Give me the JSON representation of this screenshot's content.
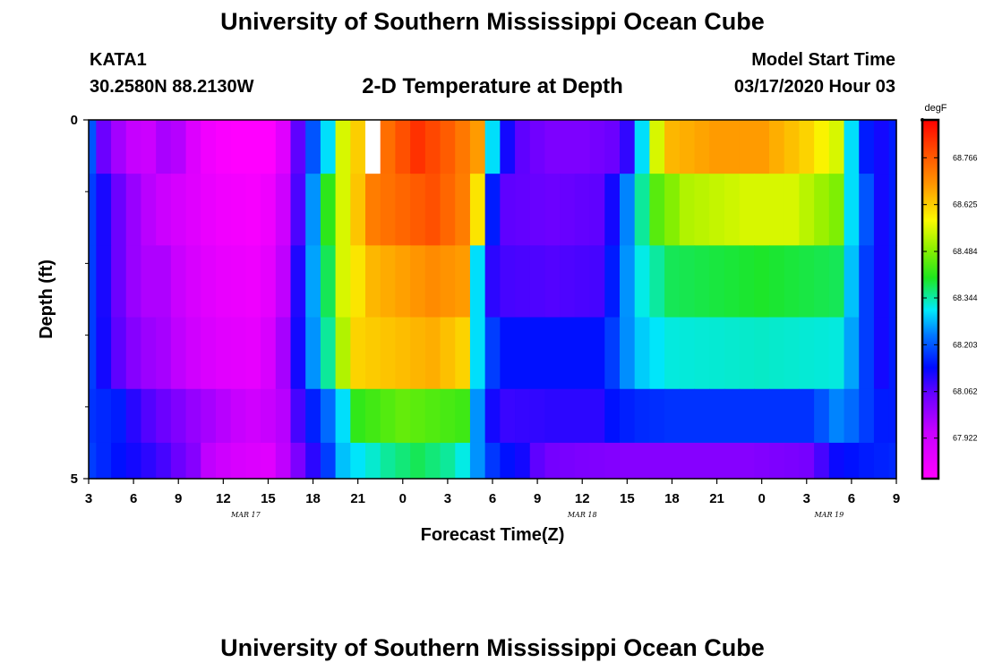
{
  "header": {
    "title": "University of Southern Mississippi Ocean Cube",
    "station": "KATA1",
    "coords": "30.2580N 88.2130W",
    "subtitle": "2-D Temperature at Depth",
    "model_start_label": "Model Start Time",
    "model_start_value": "03/17/2020 Hour 03"
  },
  "footer": {
    "title": "University of Southern Mississippi Ocean Cube"
  },
  "chart_data": {
    "type": "heatmap",
    "title": "2-D Temperature at Depth",
    "xlabel": "Forecast Time(Z)",
    "ylabel": "Depth (ft)",
    "x_hours": [
      0,
      54
    ],
    "y_range": [
      0,
      5
    ],
    "y_tick_labels": [
      {
        "label": "0",
        "value": 0
      },
      {
        "label": "5",
        "value": 5
      }
    ],
    "y_minor_ticks": [
      1,
      2,
      3,
      4
    ],
    "x_tick_labels": [
      "3",
      "6",
      "9",
      "12",
      "15",
      "18",
      "21",
      "0",
      "3",
      "6",
      "9",
      "12",
      "15",
      "18",
      "21",
      "0",
      "3",
      "6",
      "9"
    ],
    "date_labels": [
      {
        "label": "MAR 17",
        "hour": 10.5
      },
      {
        "label": "MAR 18",
        "hour": 33
      },
      {
        "label": "MAR 19",
        "hour": 49.5
      }
    ],
    "colorbar": {
      "unit": "degF",
      "min": 67.8,
      "max": 68.88,
      "tick_labels": [
        "67.922",
        "68.062",
        "68.203",
        "68.344",
        "68.484",
        "68.625",
        "68.766"
      ],
      "tick_values": [
        67.922,
        68.062,
        68.203,
        68.344,
        68.484,
        68.625,
        68.766
      ]
    },
    "depth_layers": [
      0.25,
      1.25,
      2.25,
      3.25,
      4.25,
      4.75
    ],
    "profiles": [
      {
        "depth": 0.25,
        "keypoints": [
          [
            0,
            68.2
          ],
          [
            1,
            68.05
          ],
          [
            2.5,
            67.95
          ],
          [
            4,
            67.93
          ],
          [
            5.5,
            68.0
          ],
          [
            7.5,
            67.85
          ],
          [
            8.5,
            67.82
          ],
          [
            10,
            67.8
          ],
          [
            11,
            67.8
          ],
          [
            12,
            67.8
          ],
          [
            13,
            67.88
          ],
          [
            14.5,
            68.15
          ],
          [
            16,
            68.3
          ],
          [
            17,
            68.55
          ],
          [
            19,
            68.7
          ],
          [
            22,
            68.82
          ],
          [
            24.5,
            68.75
          ],
          [
            26,
            68.68
          ],
          [
            26.5,
            68.55
          ],
          [
            27,
            68.3
          ],
          [
            28,
            68.12
          ],
          [
            29,
            68.06
          ],
          [
            31,
            68.03
          ],
          [
            33,
            68.03
          ],
          [
            35,
            68.05
          ],
          [
            36.5,
            68.12
          ],
          [
            37,
            68.3
          ],
          [
            38,
            68.55
          ],
          [
            39,
            68.65
          ],
          [
            42,
            68.68
          ],
          [
            45,
            68.68
          ],
          [
            48,
            68.62
          ],
          [
            50,
            68.55
          ],
          [
            51,
            68.3
          ],
          [
            52,
            68.15
          ],
          [
            53,
            68.12
          ],
          [
            54,
            68.15
          ]
        ]
      },
      {
        "depth": 1.25,
        "keypoints": [
          [
            0,
            68.18
          ],
          [
            2,
            68.05
          ],
          [
            3.5,
            67.97
          ],
          [
            5,
            67.93
          ],
          [
            7,
            67.88
          ],
          [
            8.5,
            67.84
          ],
          [
            11,
            67.82
          ],
          [
            12.5,
            67.85
          ],
          [
            13.5,
            68.0
          ],
          [
            14.5,
            68.15
          ],
          [
            15.5,
            68.35
          ],
          [
            17,
            68.55
          ],
          [
            19,
            68.72
          ],
          [
            23,
            68.78
          ],
          [
            25,
            68.72
          ],
          [
            26,
            68.6
          ],
          [
            26.5,
            68.4
          ],
          [
            27,
            68.15
          ],
          [
            28,
            68.06
          ],
          [
            31,
            68.05
          ],
          [
            34,
            68.06
          ],
          [
            35,
            68.12
          ],
          [
            36.5,
            68.3
          ],
          [
            38,
            68.45
          ],
          [
            40,
            68.52
          ],
          [
            44,
            68.55
          ],
          [
            47,
            68.55
          ],
          [
            50,
            68.48
          ],
          [
            51,
            68.3
          ],
          [
            52,
            68.2
          ],
          [
            53,
            68.12
          ],
          [
            54,
            68.15
          ]
        ]
      },
      {
        "depth": 2.25,
        "keypoints": [
          [
            0,
            68.18
          ],
          [
            2,
            68.05
          ],
          [
            3.5,
            67.97
          ],
          [
            5,
            67.97
          ],
          [
            7,
            67.9
          ],
          [
            8.5,
            67.86
          ],
          [
            11,
            67.84
          ],
          [
            12.5,
            67.88
          ],
          [
            13.5,
            68.02
          ],
          [
            14.5,
            68.2
          ],
          [
            16,
            68.38
          ],
          [
            17,
            68.55
          ],
          [
            19,
            68.65
          ],
          [
            23,
            68.7
          ],
          [
            25,
            68.68
          ],
          [
            25.5,
            68.5
          ],
          [
            26,
            68.3
          ],
          [
            27,
            68.1
          ],
          [
            28,
            68.08
          ],
          [
            31,
            68.07
          ],
          [
            34,
            68.08
          ],
          [
            35,
            68.15
          ],
          [
            36.5,
            68.3
          ],
          [
            39,
            68.38
          ],
          [
            45,
            68.4
          ],
          [
            50,
            68.38
          ],
          [
            51,
            68.28
          ],
          [
            52,
            68.18
          ],
          [
            53,
            68.12
          ],
          [
            54,
            68.15
          ]
        ]
      },
      {
        "depth": 3.25,
        "keypoints": [
          [
            0,
            68.18
          ],
          [
            2,
            68.06
          ],
          [
            3.5,
            68.0
          ],
          [
            5,
            67.98
          ],
          [
            7,
            67.92
          ],
          [
            8.5,
            67.88
          ],
          [
            11,
            67.86
          ],
          [
            12.5,
            67.92
          ],
          [
            13.5,
            68.04
          ],
          [
            14.5,
            68.2
          ],
          [
            16,
            68.35
          ],
          [
            17,
            68.52
          ],
          [
            18,
            68.62
          ],
          [
            23,
            68.66
          ],
          [
            25,
            68.62
          ],
          [
            25.5,
            68.5
          ],
          [
            26,
            68.3
          ],
          [
            27,
            68.18
          ],
          [
            28,
            68.14
          ],
          [
            31,
            68.14
          ],
          [
            34,
            68.14
          ],
          [
            35,
            68.18
          ],
          [
            36.5,
            68.28
          ],
          [
            39,
            68.32
          ],
          [
            45,
            68.33
          ],
          [
            50,
            68.32
          ],
          [
            51,
            68.26
          ],
          [
            52,
            68.18
          ],
          [
            53,
            68.12
          ],
          [
            54,
            68.15
          ]
        ]
      },
      {
        "depth": 4.25,
        "keypoints": [
          [
            0,
            68.17
          ],
          [
            2,
            68.15
          ],
          [
            3.5,
            68.08
          ],
          [
            5,
            68.05
          ],
          [
            7,
            68.0
          ],
          [
            8.5,
            67.97
          ],
          [
            11,
            67.92
          ],
          [
            13,
            67.96
          ],
          [
            13.5,
            68.04
          ],
          [
            14.5,
            68.12
          ],
          [
            16,
            68.22
          ],
          [
            17,
            68.3
          ],
          [
            18,
            68.42
          ],
          [
            21,
            68.46
          ],
          [
            25,
            68.43
          ],
          [
            25.5,
            68.35
          ],
          [
            26,
            68.25
          ],
          [
            27,
            68.12
          ],
          [
            28,
            68.09
          ],
          [
            31,
            68.1
          ],
          [
            34,
            68.1
          ],
          [
            35,
            68.14
          ],
          [
            36.5,
            68.16
          ],
          [
            39,
            68.17
          ],
          [
            45,
            68.17
          ],
          [
            48,
            68.17
          ],
          [
            49,
            68.2
          ],
          [
            50,
            68.24
          ],
          [
            51,
            68.22
          ],
          [
            52,
            68.18
          ],
          [
            53,
            68.15
          ],
          [
            54,
            68.15
          ]
        ]
      },
      {
        "depth": 4.75,
        "keypoints": [
          [
            0,
            68.18
          ],
          [
            1.5,
            68.15
          ],
          [
            3,
            68.12
          ],
          [
            5,
            68.08
          ],
          [
            7,
            68.02
          ],
          [
            8,
            67.95
          ],
          [
            10,
            67.9
          ],
          [
            12,
            67.88
          ],
          [
            13,
            67.95
          ],
          [
            14,
            68.03
          ],
          [
            15,
            68.1
          ],
          [
            16,
            68.18
          ],
          [
            17,
            68.28
          ],
          [
            20,
            68.35
          ],
          [
            22,
            68.38
          ],
          [
            24,
            68.35
          ],
          [
            25.5,
            68.3
          ],
          [
            26.5,
            68.2
          ],
          [
            27.5,
            68.15
          ],
          [
            29,
            68.12
          ],
          [
            30,
            68.06
          ],
          [
            31,
            68.04
          ],
          [
            33,
            68.03
          ],
          [
            36,
            68.02
          ],
          [
            40,
            68.02
          ],
          [
            44,
            68.02
          ],
          [
            48.5,
            68.04
          ],
          [
            49.5,
            68.12
          ],
          [
            51,
            68.14
          ],
          [
            52,
            68.15
          ],
          [
            54,
            68.16
          ]
        ]
      }
    ],
    "missing_cells": [
      {
        "hour": 19,
        "depth": 0.25
      }
    ]
  }
}
